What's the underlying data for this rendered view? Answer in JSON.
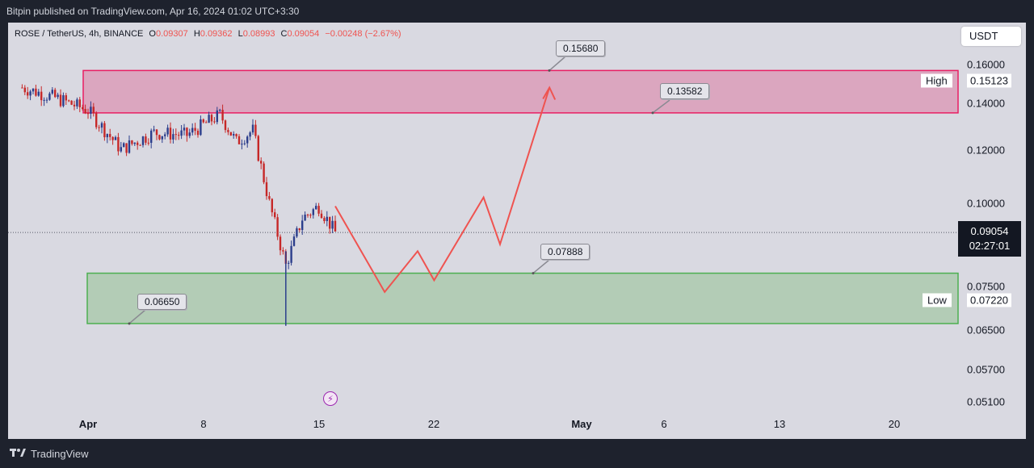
{
  "header": {
    "published_text": "Bitpin published on TradingView.com, Apr 16, 2024 01:02 UTC+3:30"
  },
  "symbol": {
    "name": "ROSE / TetherUS, 4h, BINANCE",
    "open_label": "O",
    "open": "0.09307",
    "high_label": "H",
    "high": "0.09362",
    "low_label": "L",
    "low": "0.08993",
    "close_label": "C",
    "close": "0.09054",
    "change": "−0.00248 (−2.67%)"
  },
  "currency": "USDT",
  "price_axis": {
    "ticks": [
      "0.16000",
      "0.14000",
      "0.12000",
      "0.10000",
      "0.07500",
      "0.06500",
      "0.05700",
      "0.05100"
    ],
    "last_price": "0.09054",
    "countdown": "02:27:01"
  },
  "zones": {
    "high": {
      "label": "High",
      "price": "0.15123",
      "top": 0.1568,
      "bottom": 0.13582,
      "fill": "#dba6bf",
      "border": "#e91e63"
    },
    "low": {
      "label": "Low",
      "price": "0.07220",
      "top": 0.07888,
      "bottom": 0.0665,
      "fill": "#b3ccb6",
      "border": "#4caf50"
    }
  },
  "callouts": [
    "0.15680",
    "0.13582",
    "0.07888",
    "0.06650"
  ],
  "time_axis": {
    "ticks": [
      {
        "label": "Apr",
        "bold": true
      },
      {
        "label": "8",
        "bold": false
      },
      {
        "label": "15",
        "bold": false
      },
      {
        "label": "22",
        "bold": false
      },
      {
        "label": "May",
        "bold": true
      },
      {
        "label": "6",
        "bold": false
      },
      {
        "label": "13",
        "bold": false
      },
      {
        "label": "20",
        "bold": false
      }
    ]
  },
  "event_icon": "lightning-icon",
  "footer": {
    "brand": "TradingView",
    "logo_icon": "tradingview-logo-icon"
  },
  "colors": {
    "up_candle": "#2c3e8c",
    "down_candle": "#c62828",
    "projection": "#ef5350",
    "background": "#d9d9e1"
  },
  "chart_data": {
    "type": "candlestick",
    "title": "ROSE / TetherUS, 4h, BINANCE",
    "y_scale": "log",
    "ylim": [
      0.048,
      0.18
    ],
    "price_path": [
      [
        "2024-03-28",
        0.148
      ],
      [
        "2024-03-30",
        0.143
      ],
      [
        "2024-04-01",
        0.137
      ],
      [
        "2024-04-03",
        0.12
      ],
      [
        "2024-04-05",
        0.127
      ],
      [
        "2024-04-07",
        0.126
      ],
      [
        "2024-04-09",
        0.135
      ],
      [
        "2024-04-10",
        0.123
      ],
      [
        "2024-04-11",
        0.128
      ],
      [
        "2024-04-12",
        0.1
      ],
      [
        "2024-04-13",
        0.081
      ],
      [
        "2024-04-14",
        0.095
      ],
      [
        "2024-04-15",
        0.099
      ],
      [
        "2024-04-16",
        0.09054
      ]
    ],
    "wick_low": {
      "date": "2024-04-13",
      "value": 0.066
    },
    "projection_path": [
      [
        "2024-04-16",
        0.099
      ],
      [
        "2024-04-19",
        0.074
      ],
      [
        "2024-04-21",
        0.085
      ],
      [
        "2024-04-22",
        0.077
      ],
      [
        "2024-04-25",
        0.102
      ],
      [
        "2024-04-26",
        0.087
      ],
      [
        "2024-04-29",
        0.148
      ]
    ]
  }
}
